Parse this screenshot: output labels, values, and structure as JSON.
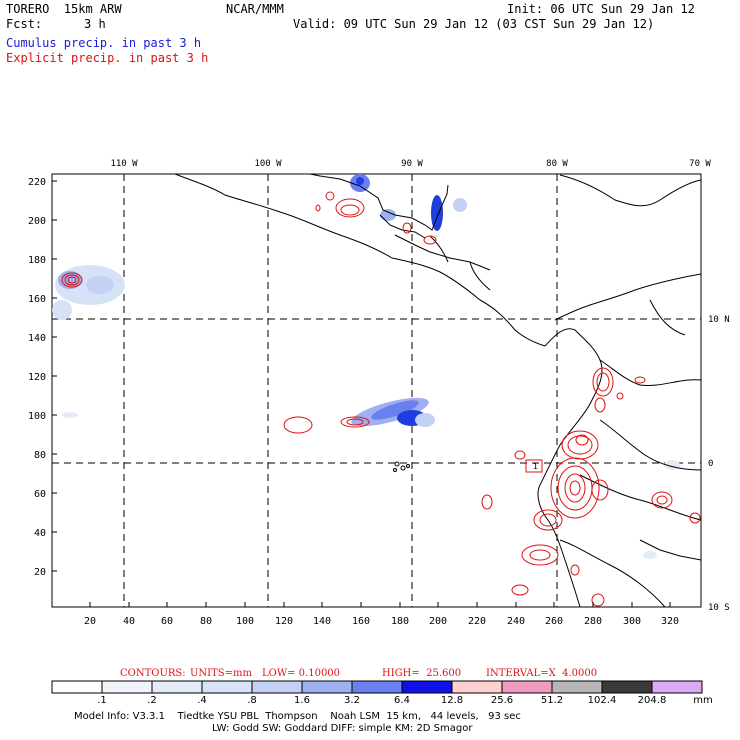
{
  "header": {
    "model_name": "TORERO  15km ARW",
    "org": "NCAR/MMM",
    "init": "Init: 06 UTC Sun 29 Jan 12",
    "fcst_label": "Fcst:",
    "fcst_value": "3 h",
    "valid": "Valid: 09 UTC Sun 29 Jan 12 (03 CST Sun 29 Jan 12)",
    "field1": "Cumulus precip. in past 3 h",
    "field2": "Explicit precip. in past 3 h"
  },
  "map": {
    "top_lon_labels": [
      "110 W",
      "100 W",
      "90 W",
      "80 W",
      "70 W"
    ],
    "right_lat_labels": [
      "10 N",
      "0",
      "10 S"
    ],
    "y_ticks": [
      "220",
      "200",
      "180",
      "160",
      "140",
      "120",
      "100",
      "80",
      "60",
      "40",
      "20"
    ],
    "x_ticks": [
      "20",
      "40",
      "60",
      "80",
      "100",
      "120",
      "140",
      "160",
      "180",
      "200",
      "220",
      "240",
      "260",
      "280",
      "300",
      "320"
    ],
    "colors": {
      "cumulus": "#1f3ee0",
      "explicit": "#e01010",
      "land": "#000000"
    }
  },
  "contour_note": {
    "contours": "CONTOURS:",
    "units": "UNITS=mm",
    "low": "LOW= 0.10000",
    "high": "HIGH=  25.600",
    "interval": "INTERVAL=X  4.0000"
  },
  "scale": {
    "labels": [
      ".1",
      ".2",
      ".4",
      ".8",
      "1.6",
      "3.2",
      "6.4",
      "12.8",
      "25.6",
      "51.2",
      "102.4",
      "204.8"
    ],
    "unit": "mm",
    "colors": [
      "#ffffff",
      "#f1f4fb",
      "#e4ebf8",
      "#d6e2f6",
      "#c3d2f4",
      "#9eb0f0",
      "#6a7ff0",
      "#1010e8",
      "#ffd0d0",
      "#f09ac2",
      "#b7b7b7",
      "#3a3a3a",
      "#dcaaf4"
    ]
  },
  "model_info": {
    "line1": "Model Info: V3.3.1    Tiedtke YSU PBL  Thompson    Noah LSM  15 km,   44 levels,   93 sec",
    "line2": "LW: Godd SW: Goddard DIFF: simple KM: 2D Smagor"
  }
}
